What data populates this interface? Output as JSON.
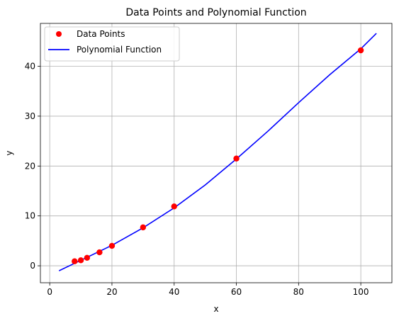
{
  "chart_data": {
    "type": "scatter",
    "title": "Data Points and Polynomial Function",
    "xlabel": "x",
    "ylabel": "y",
    "xlim": [
      -3,
      110
    ],
    "ylim": [
      -3.4,
      48.6
    ],
    "xticks": [
      0,
      20,
      40,
      60,
      80,
      100
    ],
    "yticks": [
      0,
      10,
      20,
      30,
      40
    ],
    "grid": true,
    "legend_position": "top-left",
    "series": [
      {
        "name": "Data Points",
        "kind": "scatter",
        "color": "#ff0000",
        "x": [
          8,
          10,
          12,
          16,
          20,
          30,
          40,
          60,
          100
        ],
        "y": [
          0.9,
          1.1,
          1.6,
          2.7,
          4.0,
          7.7,
          11.9,
          21.5,
          43.2
        ]
      },
      {
        "name": "Polynomial Function",
        "kind": "line",
        "color": "#0000ff",
        "x": [
          3,
          10,
          20,
          30,
          40,
          50,
          60,
          70,
          80,
          90,
          100,
          105
        ],
        "y": [
          -1.0,
          1.1,
          4.1,
          7.6,
          11.6,
          16.2,
          21.4,
          26.9,
          32.7,
          38.3,
          43.5,
          46.6
        ]
      }
    ]
  }
}
